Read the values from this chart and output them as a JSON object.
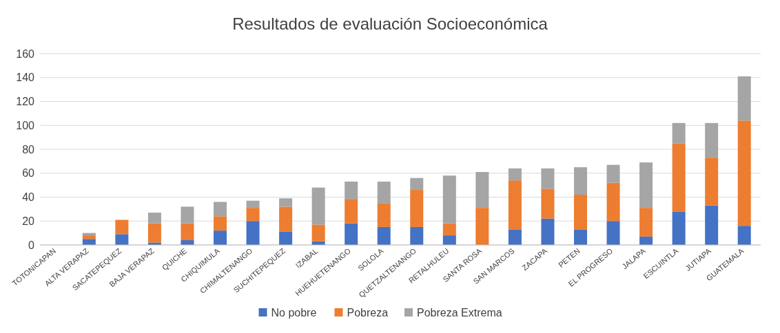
{
  "chart_data": {
    "type": "bar",
    "stacked": true,
    "title": "Resultados de evaluación Socioeconómica",
    "categories": [
      "TOTONICAPAN",
      "ALTA VERAPAZ",
      "SACATEPEQUEZ",
      "BAJA VERAPAZ",
      "QUICHE",
      "CHIQUIMULA",
      "CHIMALTENANGO",
      "SUCHITEPEQUEZ",
      "IZABAL",
      "HUEHUETENANGO",
      "SOLOLA",
      "QUETZALTENANGO",
      "RETALHULEU",
      "SANTA ROSA",
      "SAN MARCOS",
      "ZACAPA",
      "PETEN",
      "EL PROGRESO",
      "JALAPA",
      "ESCUINTLA",
      "JUTIAPA",
      "GUATEMALA"
    ],
    "series": [
      {
        "name": "No pobre",
        "color": "#4472c4",
        "values": [
          0,
          5,
          9,
          2,
          4,
          12,
          20,
          11,
          3,
          18,
          15,
          15,
          8,
          0,
          13,
          22,
          13,
          20,
          7,
          28,
          33,
          16
        ]
      },
      {
        "name": "Pobreza",
        "color": "#ed7d31",
        "values": [
          0,
          3,
          12,
          16,
          14,
          12,
          11,
          21,
          14,
          20,
          20,
          31,
          10,
          31,
          41,
          25,
          29,
          32,
          24,
          57,
          40,
          88
        ]
      },
      {
        "name": "Pobreza Extrema",
        "color": "#a5a5a5",
        "values": [
          0,
          2,
          0,
          9,
          14,
          12,
          6,
          7,
          31,
          15,
          18,
          10,
          40,
          30,
          10,
          17,
          23,
          15,
          38,
          17,
          29,
          37
        ]
      }
    ],
    "ylim": [
      0,
      160
    ],
    "yticks": [
      0,
      20,
      40,
      60,
      80,
      100,
      120,
      140,
      160
    ],
    "grid": "y",
    "legend": "bottom"
  }
}
